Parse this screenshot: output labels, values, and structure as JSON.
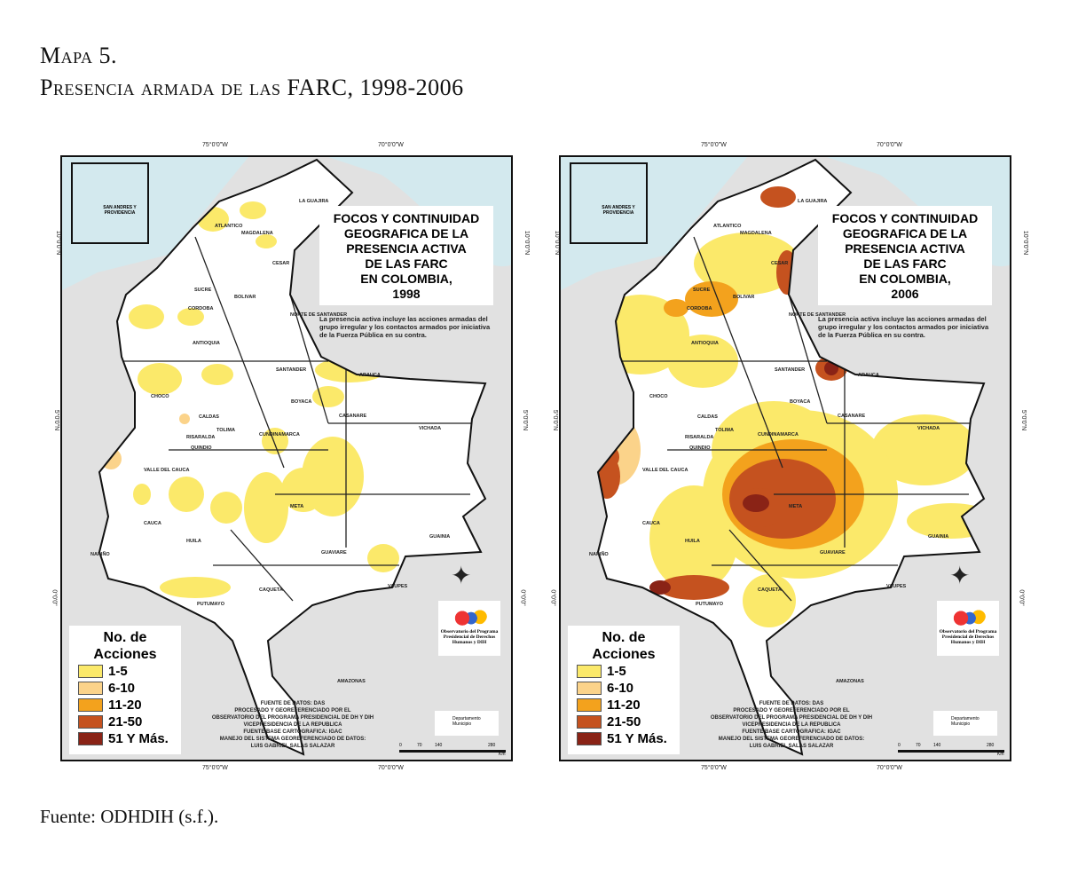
{
  "caption": {
    "line1": "Mapa 5.",
    "line2": "Presencia armada de las FARC, 1998-2006"
  },
  "source": "Fuente: ODHDIH (s.f.).",
  "coords": {
    "lon1": "75°0'0\"W",
    "lon2": "70°0'0\"W",
    "lat1": "10°0'0\"N",
    "lat2": "5°0'0\"N",
    "lat3": "0°0'0\""
  },
  "maps": [
    {
      "title": [
        "FOCOS Y CONTINUIDAD",
        "GEOGRAFICA DE LA",
        "PRESENCIA ACTIVA",
        "DE LAS FARC",
        "EN COLOMBIA,",
        "1998"
      ],
      "year": "1998"
    },
    {
      "title": [
        "FOCOS Y CONTINUIDAD",
        "GEOGRAFICA DE LA",
        "PRESENCIA ACTIVA",
        "DE LAS FARC",
        "EN COLOMBIA,",
        "2006"
      ],
      "year": "2006"
    }
  ],
  "note": "La presencia activa incluye las acciones armadas del grupo irregular y los contactos armados por iniciativa de la Fuerza Pública en su contra.",
  "inset_label": "SAN ANDRES Y PROVIDENCIA",
  "legend": {
    "title1": "No. de",
    "title2": "Acciones",
    "items": [
      {
        "label": "1-5",
        "color": "#fbe96a"
      },
      {
        "label": "6-10",
        "color": "#fbd38a"
      },
      {
        "label": "11-20",
        "color": "#f3a21d"
      },
      {
        "label": "21-50",
        "color": "#c5521f"
      },
      {
        "label": "51 Y Más.",
        "color": "#8a2316"
      }
    ]
  },
  "credits": [
    "FUENTE DE DATOS: DAS",
    "PROCESADO Y GEOREFERENCIADO POR EL",
    "OBSERVATORIO DEL PROGRAMA PRESIDENCIAL DE DH Y DIH",
    "VICEPRESIDENCIA DE LA REPUBLICA",
    "FUENTE BASE CARTOGRAFICA: IGAC",
    "MANEJO DEL SISTEMA GEOREFERENCIADO DE DATOS:",
    "LUIS GABRIEL SALAS SALAZAR"
  ],
  "logo_text": "Observatorio del Programa Presidencial de Derechos Humanos y DIH",
  "key": {
    "dept": "Departamento",
    "muni": "Municipio"
  },
  "scale": {
    "ticks": [
      "0",
      "70",
      "140",
      "280"
    ],
    "unit": "Km"
  },
  "departments": [
    "LA GUAJIRA",
    "ATLANTICO",
    "MAGDALENA",
    "CESAR",
    "SUCRE",
    "BOLIVAR",
    "CORDOBA",
    "NORTE DE SANTANDER",
    "ANTIOQUIA",
    "SANTANDER",
    "ARAUCA",
    "CHOCO",
    "BOYACA",
    "CALDAS",
    "RISARALDA",
    "TOLIMA",
    "QUINDIO",
    "CUNDINAMARCA",
    "CASANARE",
    "VICHADA",
    "VALLE DEL CAUCA",
    "META",
    "GUAINIA",
    "CAUCA",
    "HUILA",
    "GUAVIARE",
    "NARIÑO",
    "CAQUETA",
    "VAUPES",
    "PUTUMAYO",
    "AMAZONAS"
  ]
}
